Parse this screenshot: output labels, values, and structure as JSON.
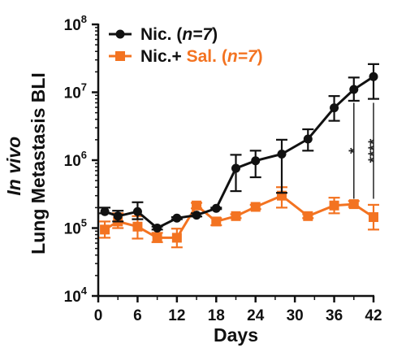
{
  "chart_data": {
    "type": "line",
    "title": "",
    "xlabel": "Days",
    "ylabel_line1": "In vivo",
    "ylabel_line2": "Lung Metastasis BLI",
    "y_scale": "log",
    "xlim": [
      0,
      42
    ],
    "ylim": [
      10000,
      100000000
    ],
    "x_ticks": [
      0,
      6,
      12,
      18,
      24,
      30,
      36,
      42
    ],
    "x_tick_labels": [
      "0",
      "6",
      "12",
      "18",
      "24",
      "30",
      "36",
      "42"
    ],
    "y_ticks": [
      10000,
      100000,
      1000000,
      10000000,
      100000000
    ],
    "y_tick_labels": [
      {
        "base": "10",
        "exp": "4"
      },
      {
        "base": "10",
        "exp": "5"
      },
      {
        "base": "10",
        "exp": "6"
      },
      {
        "base": "10",
        "exp": "7"
      },
      {
        "base": "10",
        "exp": "8"
      }
    ],
    "grid": false,
    "legend_position": "top-left",
    "series": [
      {
        "legend_parts": [
          {
            "text": "Nic. (",
            "italic": false,
            "color": "#111111"
          },
          {
            "text": "n=7",
            "italic": true,
            "color": "#111111"
          },
          {
            "text": ")",
            "italic": false,
            "color": "#111111"
          }
        ],
        "color": "#111111",
        "marker": "circle",
        "x": [
          1,
          3,
          6,
          9,
          12,
          15,
          18,
          21,
          24,
          28,
          32,
          36,
          39,
          42
        ],
        "y": [
          175000,
          150000,
          175000,
          100000,
          140000,
          155000,
          195000,
          760000,
          980000,
          1230000,
          2050000,
          5900000,
          11000000,
          17000000
        ],
        "err_high": [
          200000,
          180000,
          240000,
          105000,
          145000,
          165000,
          200000,
          1200000,
          1380000,
          2000000,
          2850000,
          8800000,
          16500000,
          26000000
        ],
        "err_low": [
          165000,
          125000,
          135000,
          95000,
          135000,
          148000,
          190000,
          350000,
          560000,
          330000,
          1380000,
          3800000,
          7500000,
          8000000
        ]
      },
      {
        "legend_parts": [
          {
            "text": "Nic.+ ",
            "italic": false,
            "color": "#111111"
          },
          {
            "text": "Sal. (",
            "italic": false,
            "color": "#f37321"
          },
          {
            "text": "n=7",
            "italic": true,
            "color": "#f37321"
          },
          {
            "text": ")",
            "italic": false,
            "color": "#f37321"
          }
        ],
        "color": "#f37321",
        "marker": "square",
        "x": [
          1,
          3,
          6,
          9,
          12,
          15,
          18,
          21,
          24,
          28,
          32,
          36,
          39,
          42
        ],
        "y": [
          95000,
          125000,
          105000,
          72000,
          72000,
          215000,
          125000,
          150000,
          205000,
          300000,
          150000,
          215000,
          225000,
          145000
        ],
        "err_high": [
          125000,
          165000,
          150000,
          85000,
          98000,
          235000,
          140000,
          160000,
          220000,
          400000,
          160000,
          280000,
          250000,
          220000
        ],
        "err_low": [
          72000,
          100000,
          70000,
          62000,
          52000,
          195000,
          110000,
          140000,
          190000,
          200000,
          140000,
          165000,
          205000,
          95000
        ]
      }
    ],
    "significance": [
      {
        "x": 39,
        "label": "*",
        "y_top": 7000000,
        "y_bottom": 270000
      },
      {
        "x": 42,
        "label": "****",
        "y_top": 7000000,
        "y_bottom": 270000
      }
    ]
  }
}
